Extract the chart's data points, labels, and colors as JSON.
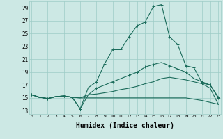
{
  "bg_color": "#cce8e4",
  "grid_color": "#9eccc6",
  "line_color": "#1a6b5a",
  "xlabel": "Humidex (Indice chaleur)",
  "xlabel_fontsize": 7.0,
  "ytick_labels": [
    "13",
    "15",
    "17",
    "19",
    "21",
    "23",
    "25",
    "27",
    "29"
  ],
  "yticks": [
    13,
    15,
    17,
    19,
    21,
    23,
    25,
    27,
    29
  ],
  "xtick_labels": [
    "0",
    "1",
    "2",
    "3",
    "4",
    "5",
    "6",
    "7",
    "8",
    "9",
    "10",
    "11",
    "12",
    "13",
    "14",
    "15",
    "16",
    "17",
    "18",
    "19",
    "20",
    "21",
    "22",
    "23"
  ],
  "xticks": [
    0,
    1,
    2,
    3,
    4,
    5,
    6,
    7,
    8,
    9,
    10,
    11,
    12,
    13,
    14,
    15,
    16,
    17,
    18,
    19,
    20,
    21,
    22,
    23
  ],
  "ylim": [
    12.5,
    30.0
  ],
  "xlim": [
    -0.3,
    23.3
  ],
  "series": [
    [
      15.5,
      15.1,
      14.9,
      15.2,
      15.3,
      15.1,
      13.3,
      16.6,
      17.5,
      20.3,
      22.5,
      22.5,
      24.5,
      26.2,
      26.8,
      29.2,
      29.5,
      24.5,
      23.3,
      20.0,
      19.7,
      17.3,
      17.0,
      15.1
    ],
    [
      15.5,
      15.1,
      14.9,
      15.2,
      15.3,
      15.1,
      13.3,
      15.5,
      16.5,
      17.0,
      17.5,
      18.0,
      18.5,
      19.0,
      19.8,
      20.2,
      20.5,
      20.0,
      19.5,
      19.0,
      18.0,
      17.5,
      17.0,
      15.0
    ],
    [
      15.5,
      15.1,
      14.9,
      15.2,
      15.3,
      15.1,
      15.0,
      15.5,
      15.6,
      15.8,
      16.0,
      16.3,
      16.5,
      16.8,
      17.2,
      17.5,
      18.0,
      18.2,
      18.0,
      17.8,
      17.5,
      17.2,
      16.5,
      14.0
    ],
    [
      15.5,
      15.1,
      14.9,
      15.2,
      15.3,
      15.1,
      15.0,
      15.0,
      15.0,
      15.0,
      15.0,
      15.0,
      15.0,
      15.0,
      15.0,
      15.0,
      15.0,
      15.0,
      15.0,
      15.0,
      14.8,
      14.6,
      14.3,
      14.0
    ]
  ],
  "markers": [
    true,
    true,
    false,
    false
  ]
}
